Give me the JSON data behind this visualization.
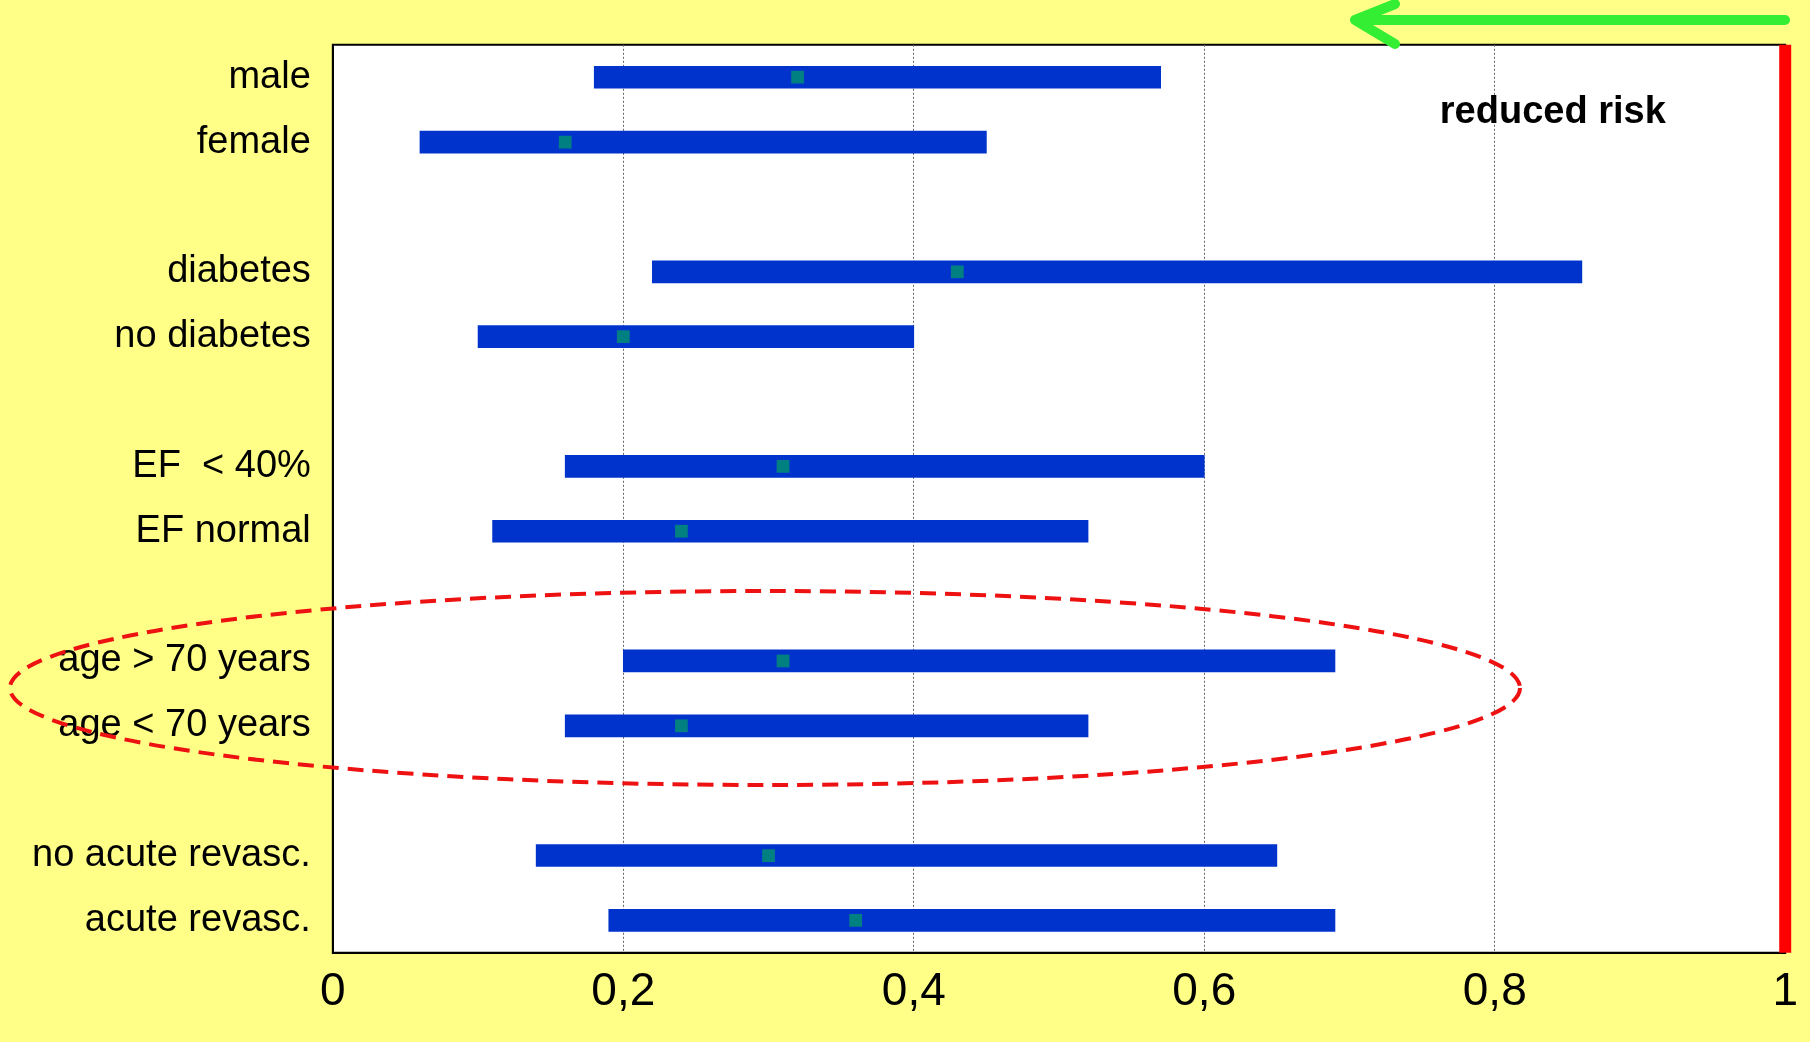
{
  "chart_data": {
    "type": "bar",
    "orientation": "horizontal",
    "categories": [
      "male",
      "female",
      null,
      "diabetes",
      "no diabetes",
      null,
      "EF  < 40%",
      "EF normal",
      null,
      "age > 70 years",
      "age < 70 years",
      null,
      "no acute revasc.",
      "acute revasc."
    ],
    "series": [
      {
        "color": "#0033cc",
        "base": [
          0.18,
          0.06,
          null,
          0.22,
          0.1,
          null,
          0.16,
          0.11,
          null,
          0.2,
          0.16,
          null,
          0.14,
          0.19
        ],
        "values": [
          0.39,
          0.39,
          null,
          0.64,
          0.3,
          null,
          0.44,
          0.41,
          null,
          0.49,
          0.36,
          null,
          0.51,
          0.5
        ]
      },
      {
        "type": "scatter",
        "color": "#008080",
        "values": [
          0.32,
          0.16,
          null,
          0.43,
          0.2,
          null,
          0.31,
          0.24,
          null,
          0.31,
          0.24,
          null,
          0.3,
          0.36
        ]
      }
    ],
    "xlim": [
      0,
      1
    ],
    "xticks": [
      0,
      {
        "value": 0.2,
        "label": "0,2"
      },
      {
        "value": 0.4,
        "label": "0,4"
      },
      {
        "value": 0.6,
        "label": "0,6"
      },
      {
        "value": 0.8,
        "label": "0,8"
      },
      1
    ],
    "grid": "x",
    "marker": "square",
    "ref_lines": [
      {
        "axis": "x",
        "value": 1,
        "color": "#ff0000"
      }
    ],
    "annotations": [
      "reduced risk"
    ],
    "legend": false
  }
}
